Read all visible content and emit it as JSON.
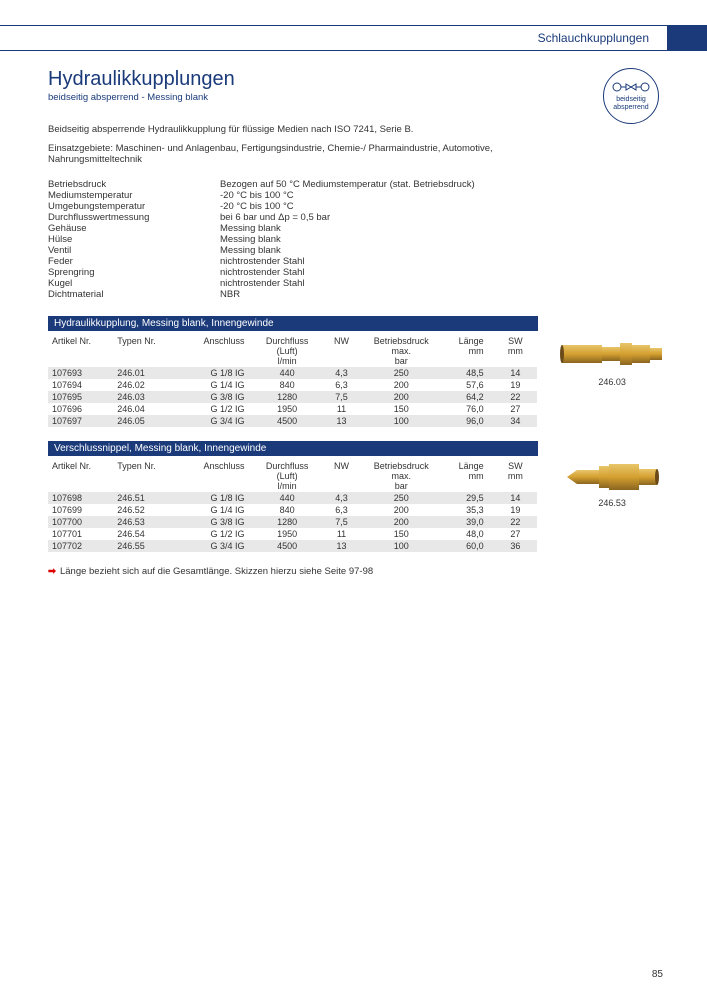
{
  "header": {
    "category": "Schlauchkupplungen"
  },
  "title": "Hydraulikkupplungen",
  "subtitle": "beidseitig absperrend - Messing blank",
  "badge": {
    "line1": "beidseitig",
    "line2": "absperrend"
  },
  "description": "Beidseitig absperrende Hydraulikkupplung für flüssige Medien nach ISO 7241, Serie B.",
  "usage": "Einsatzgebiete: Maschinen- und Anlagenbau, Fertigungsindustrie, Chemie-/ Pharmaindustrie, Automotive, Nahrungsmitteltechnik",
  "specs": [
    {
      "label": "Betriebsdruck",
      "value": "Bezogen auf 50 °C Mediumstemperatur (stat. Betriebsdruck)"
    },
    {
      "label": "Mediumstemperatur",
      "value": "-20 °C bis 100 °C"
    },
    {
      "label": "Umgebungstemperatur",
      "value": "-20 °C bis 100 °C"
    },
    {
      "label": "Durchflusswertmessung",
      "value": "bei 6 bar und Δp = 0,5 bar"
    },
    {
      "label": "Gehäuse",
      "value": "Messing blank"
    },
    {
      "label": "Hülse",
      "value": "Messing blank"
    },
    {
      "label": "Ventil",
      "value": "Messing blank"
    },
    {
      "label": "Feder",
      "value": "nichtrostender Stahl"
    },
    {
      "label": "Sprengring",
      "value": "nichtrostender Stahl"
    },
    {
      "label": "Kugel",
      "value": "nichtrostender Stahl"
    },
    {
      "label": "Dichtmaterial",
      "value": "NBR"
    }
  ],
  "section1": {
    "title": "Hydraulikkupplung, Messing blank, Innengewinde",
    "columns": [
      "Artikel Nr.",
      "Typen Nr.",
      "Anschluss",
      "Durchfluss (Luft) l/min",
      "NW",
      "Betriebsdruck max. bar",
      "Länge mm",
      "SW mm"
    ],
    "rows": [
      [
        "107693",
        "246.01",
        "G 1/8 IG",
        "440",
        "4,3",
        "250",
        "48,5",
        "14"
      ],
      [
        "107694",
        "246.02",
        "G 1/4 IG",
        "840",
        "6,3",
        "200",
        "57,6",
        "19"
      ],
      [
        "107695",
        "246.03",
        "G 3/8 IG",
        "1280",
        "7,5",
        "200",
        "64,2",
        "22"
      ],
      [
        "107696",
        "246.04",
        "G 1/2 IG",
        "1950",
        "11",
        "150",
        "76,0",
        "27"
      ],
      [
        "107697",
        "246.05",
        "G 3/4 IG",
        "4500",
        "13",
        "100",
        "96,0",
        "34"
      ]
    ],
    "caption": "246.03"
  },
  "section2": {
    "title": "Verschlussnippel, Messing blank, Innengewinde",
    "columns": [
      "Artikel Nr.",
      "Typen Nr.",
      "Anschluss",
      "Durchfluss (Luft) l/min",
      "NW",
      "Betriebsdruck max. bar",
      "Länge mm",
      "SW mm"
    ],
    "rows": [
      [
        "107698",
        "246.51",
        "G 1/8 IG",
        "440",
        "4,3",
        "250",
        "29,5",
        "14"
      ],
      [
        "107699",
        "246.52",
        "G 1/4 IG",
        "840",
        "6,3",
        "200",
        "35,3",
        "19"
      ],
      [
        "107700",
        "246.53",
        "G 3/8 IG",
        "1280",
        "7,5",
        "200",
        "39,0",
        "22"
      ],
      [
        "107701",
        "246.54",
        "G 1/2 IG",
        "1950",
        "11",
        "150",
        "48,0",
        "27"
      ],
      [
        "107702",
        "246.55",
        "G 3/4 IG",
        "4500",
        "13",
        "100",
        "60,0",
        "36"
      ]
    ],
    "caption": "246.53"
  },
  "note": "Länge bezieht sich auf die Gesamtlänge. Skizzen hierzu siehe Seite 97-98",
  "page": "85",
  "colors": {
    "brand": "#1a3a7a",
    "row_alt": "#e8e8e8",
    "brass1": "#d4a030",
    "brass2": "#b8862a",
    "brass3": "#8a6520"
  }
}
